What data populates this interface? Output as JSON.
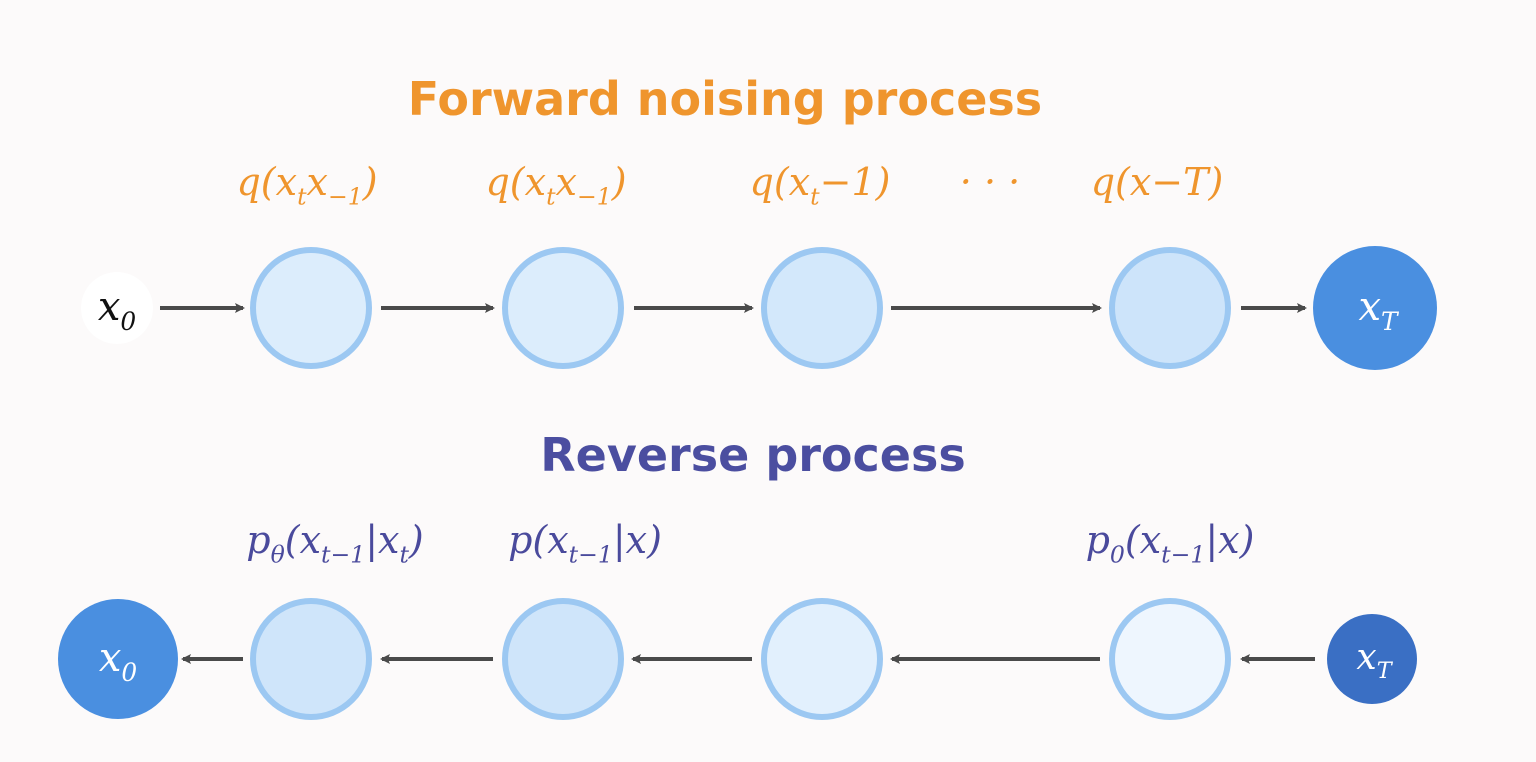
{
  "forward": {
    "title": "Forward noising process",
    "labels": [
      [
        {
          "text": "q(x"
        },
        {
          "text": "t",
          "sub": true
        },
        {
          "text": "x"
        },
        {
          "text": "−1",
          "sub": true
        },
        {
          "text": ")"
        }
      ],
      [
        {
          "text": "q(x"
        },
        {
          "text": "t",
          "sub": true
        },
        {
          "text": "x"
        },
        {
          "text": "−1",
          "sub": true
        },
        {
          "text": ")"
        }
      ],
      [
        {
          "text": "q(x"
        },
        {
          "text": "t",
          "sub": true
        },
        {
          "text": "−1)"
        }
      ],
      [
        {
          "text": "· · ·"
        }
      ],
      [
        {
          "text": "q(x−T)"
        }
      ]
    ],
    "start": [
      {
        "text": "x"
      },
      {
        "text": "0",
        "sub": true
      }
    ],
    "end": [
      {
        "text": "x"
      },
      {
        "text": "T",
        "sub": true
      }
    ]
  },
  "reverse": {
    "title": "Reverse process",
    "labels": [
      [
        {
          "text": "p"
        },
        {
          "text": "θ",
          "sub": true
        },
        {
          "text": "(x"
        },
        {
          "text": "t−1",
          "sub": true
        },
        {
          "text": "|x"
        },
        {
          "text": "t",
          "sub": true
        },
        {
          "text": ")"
        }
      ],
      [
        {
          "text": "p(x"
        },
        {
          "text": "t−1",
          "sub": true
        },
        {
          "text": "|x)"
        }
      ],
      [
        {
          "text": "p"
        },
        {
          "text": "0",
          "sub": true
        },
        {
          "text": "(x"
        },
        {
          "text": "t−1",
          "sub": true
        },
        {
          "text": "|x)"
        }
      ]
    ],
    "start": [
      {
        "text": "x"
      },
      {
        "text": "0",
        "sub": true
      }
    ],
    "end": [
      {
        "text": "x"
      },
      {
        "text": "T",
        "sub": true
      }
    ]
  }
}
